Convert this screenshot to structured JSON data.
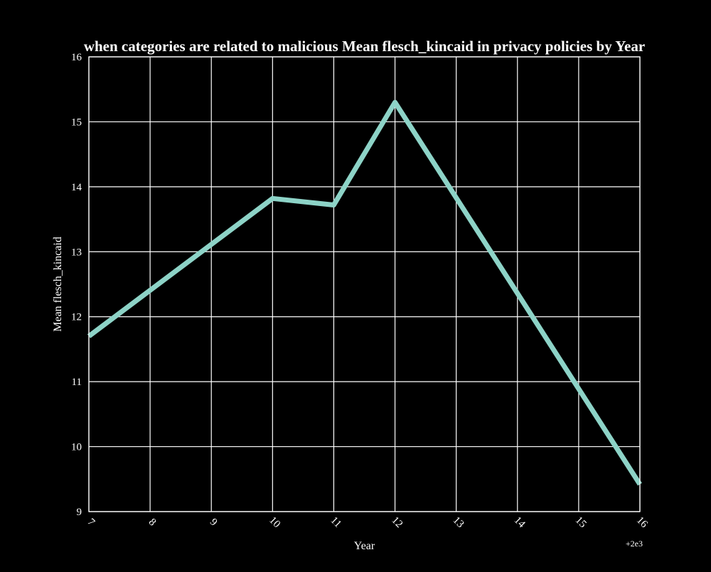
{
  "chart_data": {
    "type": "line",
    "title": "when categories are related to malicious Mean flesch_kincaid in privacy policies by Year",
    "xlabel": "Year",
    "ylabel": "Mean flesch_kincaid",
    "x_offset_label": "+2e3",
    "xlim": [
      2007,
      2016
    ],
    "ylim": [
      9,
      16
    ],
    "x_ticks": [
      2007,
      2008,
      2009,
      2010,
      2011,
      2012,
      2013,
      2014,
      2015,
      2016
    ],
    "x_tick_labels": [
      "7",
      "8",
      "9",
      "10",
      "11",
      "12",
      "13",
      "14",
      "15",
      "16"
    ],
    "y_ticks": [
      9,
      10,
      11,
      12,
      13,
      14,
      15,
      16
    ],
    "y_tick_labels": [
      "9",
      "10",
      "11",
      "12",
      "13",
      "14",
      "15",
      "16"
    ],
    "grid": true,
    "background_color": "#000000",
    "line_color": "#8dd3c7",
    "series": [
      {
        "x": [
          2007,
          2010,
          2011,
          2012,
          2016
        ],
        "values": [
          11.7,
          13.82,
          13.72,
          15.3,
          9.42
        ]
      }
    ]
  }
}
